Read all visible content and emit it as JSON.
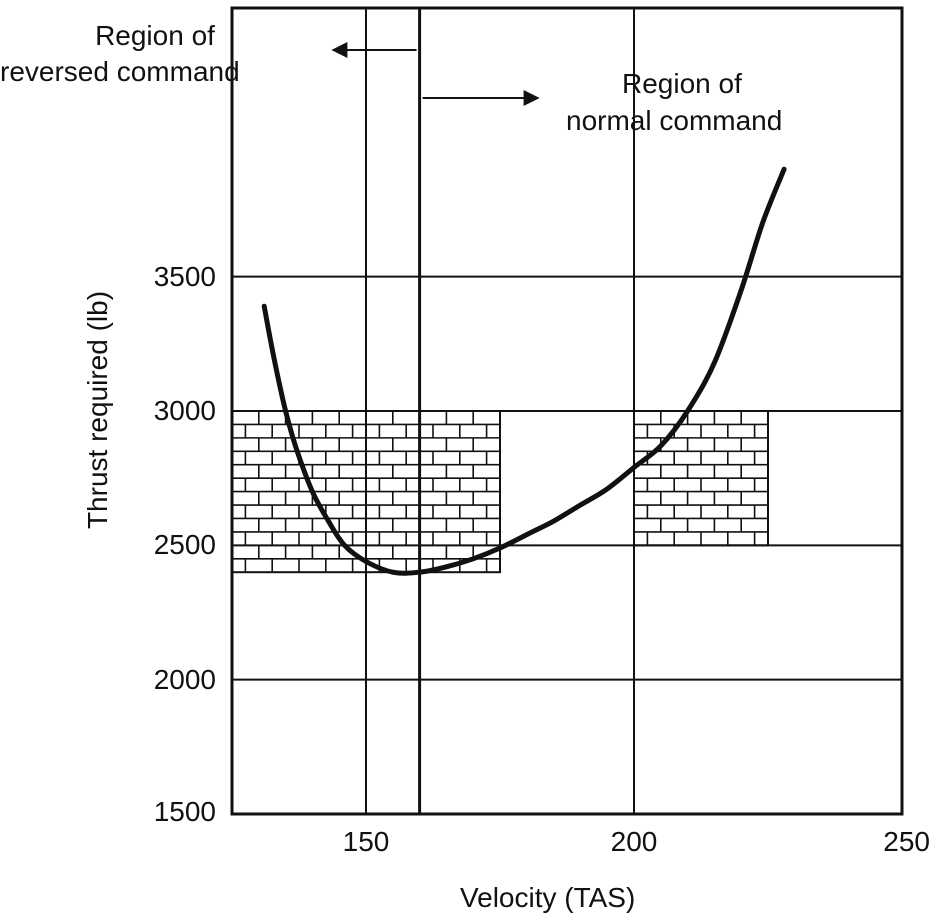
{
  "chart_data": {
    "type": "line",
    "title": "",
    "xlabel": "Velocity (TAS)",
    "ylabel": "Thrust required (lb)",
    "xlim": [
      125,
      250
    ],
    "ylim": [
      1500,
      4500
    ],
    "xticks": [
      150,
      200,
      250
    ],
    "yticks": [
      1500,
      2000,
      2500,
      3000,
      3500
    ],
    "grid": true,
    "series": [
      {
        "name": "Thrust required",
        "x": [
          131,
          133,
          135,
          137,
          140,
          143,
          146,
          150,
          155,
          160,
          165,
          170,
          175,
          180,
          185,
          190,
          195,
          200,
          205,
          210,
          215,
          220,
          224,
          228
        ],
        "y": [
          3390,
          3180,
          3000,
          2860,
          2700,
          2590,
          2500,
          2440,
          2400,
          2400,
          2420,
          2450,
          2490,
          2540,
          2590,
          2650,
          2710,
          2790,
          2870,
          3000,
          3180,
          3450,
          3700,
          3900
        ]
      }
    ],
    "divider_velocity": 160,
    "hatched_regions": [
      {
        "x": [
          125,
          175
        ],
        "y": [
          2400,
          3000
        ]
      },
      {
        "x": [
          200,
          225
        ],
        "y": [
          2500,
          3000
        ]
      }
    ],
    "annotations": {
      "reversed": {
        "line1": "Region of",
        "line2": "reversed command"
      },
      "normal": {
        "line1": "Region of",
        "line2": "normal command"
      }
    }
  }
}
